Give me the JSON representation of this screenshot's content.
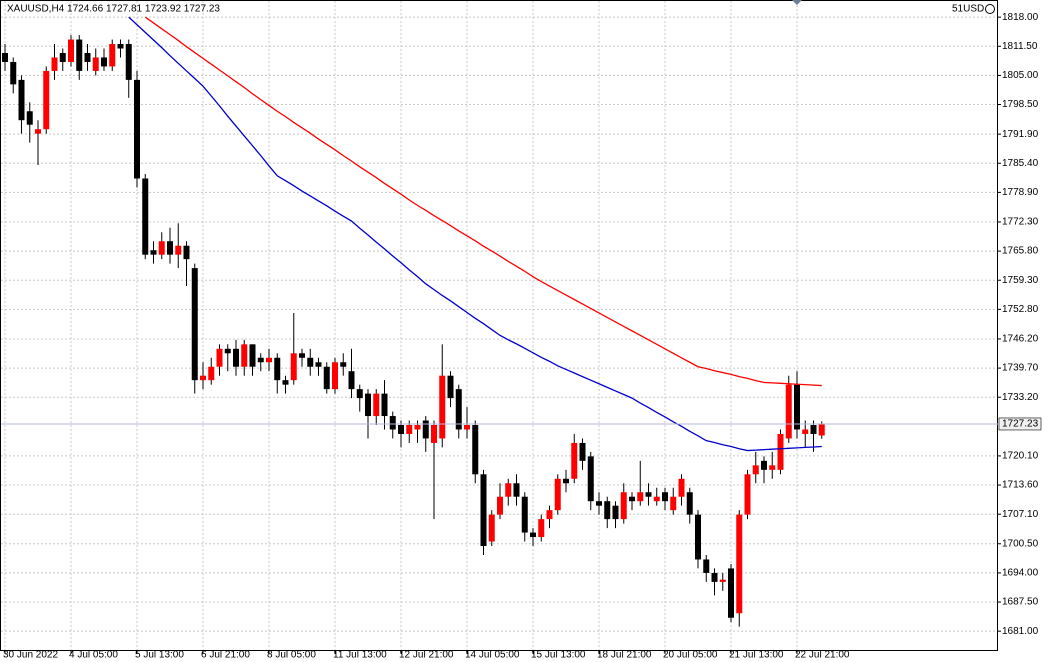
{
  "chart_data": {
    "type": "candlestick",
    "title": "XAUUSD,H4  1724.66 1727.81 1723.92 1727.23",
    "account_label": "51USD",
    "up_color": "#ff0000",
    "down_color": "#000000",
    "wick_color": "#000000",
    "grid": true,
    "ylim": [
      1676.8,
      1821.6
    ],
    "yticks": [
      {
        "value": 1818,
        "label": "1818.00"
      },
      {
        "value": 1811.5,
        "label": "1811.50"
      },
      {
        "value": 1805,
        "label": "1805.00"
      },
      {
        "value": 1798.5,
        "label": "1798.50"
      },
      {
        "value": 1791.9,
        "label": "1791.90"
      },
      {
        "value": 1785.4,
        "label": "1785.40"
      },
      {
        "value": 1778.9,
        "label": "1778.90"
      },
      {
        "value": 1772.3,
        "label": "1772.30"
      },
      {
        "value": 1765.8,
        "label": "1765.80"
      },
      {
        "value": 1759.3,
        "label": "1759.30"
      },
      {
        "value": 1752.8,
        "label": "1752.80"
      },
      {
        "value": 1746.2,
        "label": "1746.20"
      },
      {
        "value": 1739.7,
        "label": "1739.70"
      },
      {
        "value": 1733.2,
        "label": "1733.20"
      },
      {
        "value": 1720.1,
        "label": "1720.10"
      },
      {
        "value": 1713.6,
        "label": "1713.60"
      },
      {
        "value": 1707.1,
        "label": "1707.10"
      },
      {
        "value": 1700.5,
        "label": "1700.50"
      },
      {
        "value": 1694,
        "label": "1694.00"
      },
      {
        "value": 1687.5,
        "label": "1687.50"
      },
      {
        "value": 1681,
        "label": "1681.00"
      }
    ],
    "current_price": {
      "value": 1727.23,
      "label": "1727.23"
    },
    "categories": [
      "30 Jun 2022",
      null,
      null,
      null,
      null,
      null,
      null,
      null,
      "4 Jul 05:00",
      null,
      null,
      null,
      null,
      null,
      null,
      null,
      "5 Jul 13:00",
      null,
      null,
      null,
      null,
      null,
      null,
      null,
      "6 Jul 21:00",
      null,
      null,
      null,
      null,
      null,
      null,
      null,
      "8 Jul 05:00",
      null,
      null,
      null,
      null,
      null,
      null,
      null,
      "11 Jul 13:00",
      null,
      null,
      null,
      null,
      null,
      null,
      null,
      "12 Jul 21:00",
      null,
      null,
      null,
      null,
      null,
      null,
      null,
      "14 Jul 05:00",
      null,
      null,
      null,
      null,
      null,
      null,
      null,
      "15 Jul 13:00",
      null,
      null,
      null,
      null,
      null,
      null,
      null,
      "18 Jul 21:00",
      null,
      null,
      null,
      null,
      null,
      null,
      null,
      "20 Jul 05:00",
      null,
      null,
      null,
      null,
      null,
      null,
      null,
      "21 Jul 13:00",
      null,
      null,
      null,
      null,
      null,
      null,
      null,
      "22 Jul 21:00",
      null,
      null,
      null
    ],
    "open": [
      1810,
      1808,
      1804,
      1797,
      1792,
      1793,
      1806,
      1810,
      1808,
      1813,
      1810,
      1806,
      1809,
      1807,
      1812,
      1812,
      1804,
      1782,
      1766,
      1765,
      1768,
      1765,
      1767,
      1762,
      1737,
      1737,
      1740,
      1744,
      1744,
      1740,
      1745,
      1742,
      1741,
      1742,
      1737,
      1737,
      1743,
      1742,
      1741,
      1740,
      1735,
      1741,
      1739,
      1735,
      1734,
      1729,
      1734,
      1729,
      1727,
      1725,
      1726,
      1728,
      1723,
      1724,
      1738,
      1735,
      1726,
      1727,
      1716,
      1701,
      1707,
      1711,
      1714,
      1711,
      1703,
      1702,
      1706,
      1708,
      1715,
      1715,
      1723,
      1720,
      1710,
      1710,
      1709,
      1706,
      1711,
      1710,
      1712,
      1710,
      1712,
      1708,
      1711,
      1712,
      1707,
      1697,
      1694,
      1692,
      1695,
      1685,
      1707,
      1716,
      1719,
      1717,
      1717,
      1724,
      1736,
      1725,
      1727,
      1724.66
    ],
    "high": [
      1812,
      1809,
      1805,
      1799,
      1795,
      1807,
      1812,
      1811,
      1814,
      1814,
      1812,
      1811,
      1811,
      1813,
      1813,
      1813,
      1806,
      1783,
      1768,
      1770,
      1771,
      1772,
      1768,
      1763,
      1741,
      1742,
      1745,
      1745,
      1746,
      1746,
      1745,
      1743,
      1744,
      1743,
      1738,
      1752,
      1744,
      1744,
      1742,
      1741,
      1742,
      1743,
      1744,
      1736,
      1735,
      1735,
      1737,
      1730,
      1728,
      1728,
      1728,
      1729,
      1728,
      1745,
      1739,
      1736,
      1731,
      1728,
      1717,
      1708,
      1714,
      1715,
      1716,
      1712,
      1704,
      1707,
      1709,
      1716,
      1717,
      1725,
      1724,
      1721,
      1712,
      1711,
      1710,
      1714,
      1712,
      1719,
      1714,
      1713,
      1713,
      1713,
      1716,
      1713,
      1708,
      1698,
      1695,
      1694,
      1696,
      1708,
      1717,
      1721,
      1720,
      1721,
      1726,
      1738,
      1739,
      1728,
      1728,
      1727.81
    ],
    "low": [
      1806,
      1801,
      1792,
      1790,
      1785,
      1792,
      1804,
      1806,
      1807,
      1804,
      1806,
      1805,
      1806,
      1806,
      1809,
      1800,
      1780,
      1764,
      1763,
      1764,
      1763,
      1762,
      1758,
      1734,
      1735,
      1736,
      1738,
      1739,
      1738,
      1738,
      1738,
      1739,
      1739,
      1734,
      1734,
      1736,
      1740,
      1738,
      1738,
      1734,
      1734,
      1738,
      1733,
      1730,
      1724,
      1727,
      1726,
      1724,
      1722,
      1723,
      1723,
      1721,
      1706,
      1722,
      1731,
      1724,
      1724,
      1714,
      1698,
      1700,
      1706,
      1709,
      1709,
      1701,
      1700,
      1701,
      1704,
      1707,
      1712,
      1714,
      1717,
      1708,
      1707,
      1704,
      1704,
      1705,
      1708,
      1709,
      1709,
      1709,
      1708,
      1707,
      1709,
      1705,
      1695,
      1692,
      1689,
      1690,
      1683,
      1682,
      1706,
      1714,
      1714,
      1715,
      1716,
      1723,
      1724,
      1722,
      1721,
      1723.92
    ],
    "close": [
      1808,
      1803,
      1795,
      1794,
      1793,
      1806,
      1809,
      1808,
      1813,
      1806,
      1808,
      1809,
      1807,
      1812,
      1811,
      1804,
      1782,
      1765,
      1765,
      1768,
      1765,
      1767,
      1764,
      1737,
      1738,
      1740,
      1744,
      1743,
      1740,
      1745,
      1740,
      1741,
      1742,
      1737,
      1736,
      1743,
      1742,
      1740,
      1740,
      1735,
      1741,
      1740,
      1735,
      1733,
      1729,
      1734,
      1729,
      1726,
      1725,
      1727,
      1727,
      1724,
      1727,
      1738,
      1733,
      1726,
      1727,
      1716,
      1700,
      1707,
      1711,
      1714,
      1711,
      1703,
      1702,
      1706,
      1708,
      1715,
      1714,
      1723,
      1719,
      1710,
      1709,
      1706,
      1706,
      1712,
      1710,
      1712,
      1711,
      1711,
      1710,
      1711,
      1715,
      1707,
      1697,
      1694,
      1692,
      1692.5,
      1684,
      1707,
      1716,
      1718,
      1717,
      1718,
      1725,
      1736,
      1726,
      1726,
      1725,
      1727.23
    ],
    "lines": [
      {
        "color": "#ff0000",
        "values": [
          null,
          null,
          null,
          null,
          null,
          null,
          null,
          null,
          null,
          null,
          null,
          null,
          null,
          null,
          null,
          null,
          null,
          1818,
          1816.7,
          1815.4,
          1814.1,
          1812.8,
          1811.4,
          1810.1,
          1808.8,
          1807.5,
          1806.2,
          1804.9,
          1803.6,
          1802.3,
          1800.9,
          1799.6,
          1798.3,
          1797,
          1795.8,
          1794.5,
          1793.3,
          1792.1,
          1790.8,
          1789.6,
          1788.4,
          1787.1,
          1785.9,
          1784.6,
          1783.4,
          1782.2,
          1780.9,
          1779.7,
          1778.5,
          1777.2,
          1776,
          1774.9,
          1773.7,
          1772.6,
          1771.5,
          1770.3,
          1769.2,
          1768.1,
          1766.9,
          1765.8,
          1764.7,
          1763.5,
          1762.4,
          1761.3,
          1760.1,
          1759,
          1758,
          1757,
          1756,
          1755,
          1754,
          1753,
          1752,
          1751,
          1750,
          1749,
          1748,
          1747,
          1746,
          1745,
          1744,
          1743,
          1742,
          1741,
          1740,
          1739.6,
          1739.1,
          1738.7,
          1738.3,
          1737.8,
          1737.4,
          1736.9,
          1736.5,
          1736.4,
          1736.3,
          1736.2,
          1736.1,
          1736,
          1735.9,
          1735.8
        ]
      },
      {
        "color": "#0000cc",
        "values": [
          null,
          null,
          null,
          null,
          null,
          null,
          null,
          null,
          null,
          null,
          null,
          null,
          null,
          null,
          null,
          1818,
          1816.3,
          1814.6,
          1812.9,
          1811.2,
          1809.4,
          1807.7,
          1806,
          1804.3,
          1802.6,
          1800.4,
          1798.2,
          1795.9,
          1793.7,
          1791.5,
          1789.3,
          1787.1,
          1784.8,
          1782.6,
          1781.5,
          1780.4,
          1779.2,
          1778.1,
          1777,
          1775.9,
          1774.7,
          1773.6,
          1772.5,
          1770.9,
          1769.4,
          1767.8,
          1766.3,
          1764.7,
          1763.2,
          1761.6,
          1760.1,
          1758.5,
          1757.2,
          1755.9,
          1754.7,
          1753.4,
          1752.1,
          1750.8,
          1749.6,
          1748.3,
          1747,
          1746,
          1745.1,
          1744.1,
          1743.1,
          1742.1,
          1741.2,
          1740.2,
          1739.4,
          1738.6,
          1737.8,
          1737,
          1736.2,
          1735.4,
          1734.6,
          1733.8,
          1733,
          1731.9,
          1730.9,
          1729.8,
          1728.8,
          1727.7,
          1726.7,
          1725.6,
          1724.6,
          1723.5,
          1723.1,
          1722.6,
          1722.2,
          1721.7,
          1721.3,
          1721.4,
          1721.5,
          1721.6,
          1721.7,
          1721.8,
          1721.9,
          1722,
          1722.1,
          1722.2
        ]
      }
    ]
  }
}
